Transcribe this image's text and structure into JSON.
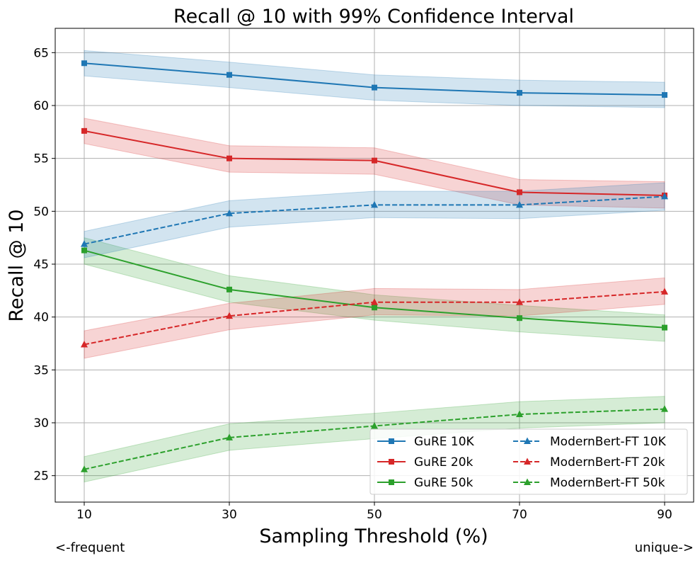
{
  "chart_data": {
    "type": "line",
    "title": "Recall @ 10 with 99% Confidence Interval",
    "xlabel": "Sampling Threshold (%)",
    "ylabel": "Recall @ 10",
    "x": [
      10,
      30,
      50,
      70,
      90
    ],
    "xticks": [
      "10",
      "30",
      "50",
      "70",
      "90"
    ],
    "yticks": [
      "25",
      "30",
      "35",
      "40",
      "45",
      "50",
      "55",
      "60",
      "65"
    ],
    "xlim": [
      6,
      94
    ],
    "ylim": [
      22.5,
      67.3
    ],
    "grid": true,
    "legend_position": "bottom-right",
    "legend_columns": 2,
    "footnote_left": "<-frequent",
    "footnote_right": "unique->",
    "series": [
      {
        "name": "GuRE 10K",
        "color": "#1f77b4",
        "dash": "solid",
        "marker": "square",
        "values": [
          64.0,
          62.9,
          61.7,
          61.2,
          61.0
        ],
        "ci_low": [
          62.8,
          61.7,
          60.5,
          60.0,
          59.8
        ],
        "ci_high": [
          65.2,
          64.1,
          62.9,
          62.4,
          62.2
        ]
      },
      {
        "name": "GuRE 20k",
        "color": "#d62728",
        "dash": "solid",
        "marker": "square",
        "values": [
          57.6,
          55.0,
          54.8,
          51.8,
          51.5
        ],
        "ci_low": [
          56.4,
          53.7,
          53.5,
          50.6,
          50.3
        ],
        "ci_high": [
          58.8,
          56.2,
          56.0,
          53.0,
          52.8
        ]
      },
      {
        "name": "GuRE 50k",
        "color": "#2ca02c",
        "dash": "solid",
        "marker": "square",
        "values": [
          46.3,
          42.6,
          40.9,
          39.9,
          39.0
        ],
        "ci_low": [
          45.0,
          41.4,
          39.7,
          38.6,
          37.7
        ],
        "ci_high": [
          47.5,
          43.9,
          42.1,
          41.1,
          40.2
        ]
      },
      {
        "name": "ModernBert-FT 10K",
        "color": "#1f77b4",
        "dash": "dashed",
        "marker": "triangle",
        "values": [
          46.9,
          49.8,
          50.6,
          50.6,
          51.4
        ],
        "ci_low": [
          45.6,
          48.5,
          49.4,
          49.3,
          50.1
        ],
        "ci_high": [
          48.1,
          51.0,
          51.9,
          51.9,
          52.7
        ]
      },
      {
        "name": "ModernBert-FT 20k",
        "color": "#d62728",
        "dash": "dashed",
        "marker": "triangle",
        "values": [
          37.4,
          40.1,
          41.4,
          41.4,
          42.4
        ],
        "ci_low": [
          36.1,
          38.8,
          40.2,
          40.1,
          41.2
        ],
        "ci_high": [
          38.7,
          41.3,
          42.7,
          42.6,
          43.7
        ]
      },
      {
        "name": "ModernBert-FT 50k",
        "color": "#2ca02c",
        "dash": "dashed",
        "marker": "triangle",
        "values": [
          25.6,
          28.6,
          29.7,
          30.8,
          31.3
        ],
        "ci_low": [
          24.4,
          27.4,
          28.5,
          29.5,
          30.0
        ],
        "ci_high": [
          26.8,
          29.9,
          30.9,
          32.0,
          32.5
        ]
      }
    ]
  }
}
